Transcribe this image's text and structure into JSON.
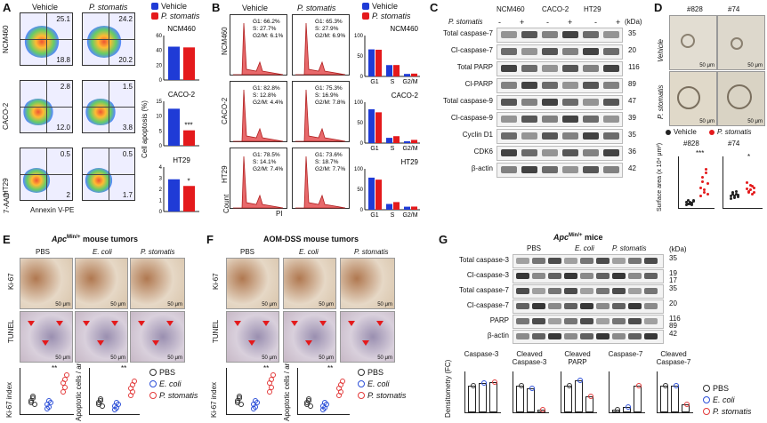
{
  "panels": {
    "A": {
      "label": "A",
      "col_headers": [
        "Vehicle",
        "P. stomatis"
      ],
      "rows": [
        {
          "name": "NCM460",
          "q": [
            "25.1",
            "18.8",
            "24.2",
            "20.2"
          ]
        },
        {
          "name": "CACO-2",
          "q": [
            "2.8",
            "12.0",
            "1.5",
            "3.8"
          ]
        },
        {
          "name": "HT29",
          "q": [
            "0.5",
            "2",
            "0.5",
            "1.7"
          ]
        }
      ],
      "xaxis": "Annexin V-PE",
      "yaxis": "7-AAD",
      "legend": [
        "Vehicle",
        "P. stomatis"
      ],
      "bar_ylabel": "Cell apoptosis (%)",
      "bar_titles": [
        "NCM460",
        "CACO-2",
        "HT29"
      ],
      "bar_yticks": [
        [
          "0",
          "20",
          "40",
          "60"
        ],
        [
          "0",
          "5",
          "10",
          "15"
        ],
        [
          "0",
          "1",
          "2",
          "3",
          "4"
        ]
      ],
      "sig": [
        "",
        "***",
        "*"
      ]
    },
    "B": {
      "label": "B",
      "col_headers": [
        "Vehicle",
        "P. stomatis"
      ],
      "rows": [
        {
          "name": "NCM460",
          "vehicle": [
            "G1: 66.2%",
            "S: 27.7%",
            "G2/M: 6.1%"
          ],
          "stomatis": [
            "G1: 65.3%",
            "S: 27.9%",
            "G2/M: 6.9%"
          ]
        },
        {
          "name": "CACO-2",
          "vehicle": [
            "G1: 82.8%",
            "S: 12.8%",
            "G2/M: 4.4%"
          ],
          "stomatis": [
            "G1: 75.3%",
            "S: 16.9%",
            "G2/M: 7.8%"
          ]
        },
        {
          "name": "HT29",
          "vehicle": [
            "G1: 78.5%",
            "S: 14.1%",
            "G2/M: 7.4%"
          ],
          "stomatis": [
            "G1: 73.6%",
            "S: 18.7%",
            "G2/M: 7.7%"
          ]
        }
      ],
      "xaxis": "PI",
      "yaxis": "Count",
      "legend": [
        "Vehicle",
        "P. stomatis"
      ],
      "bar_titles": [
        "NCM460",
        "CACO-2",
        "HT29"
      ],
      "bar_cats": [
        "G1",
        "S",
        "G2/M"
      ],
      "yticks": [
        "0",
        "50",
        "100"
      ]
    },
    "C": {
      "label": "C",
      "treatment_label": "P. stomatis",
      "groups": [
        "NCM460",
        "CACO-2",
        "HT29"
      ],
      "signs": [
        "-",
        "+",
        "-",
        "+",
        "-",
        "+"
      ],
      "kda_label": "(kDa)",
      "bands": [
        {
          "name": "Total caspase-7",
          "kda": "35"
        },
        {
          "name": "Cl-caspase-7",
          "kda": "20"
        },
        {
          "name": "Total PARP",
          "kda": "116"
        },
        {
          "name": "Cl-PARP",
          "kda": "89"
        },
        {
          "name": "Total caspase-9",
          "kda": "47"
        },
        {
          "name": "Cl-caspase-9",
          "kda": "39"
        },
        {
          "name": "Cyclin D1",
          "kda": "35"
        },
        {
          "name": "CDK6",
          "kda": "36"
        },
        {
          "name": "β-actin",
          "kda": "42"
        }
      ]
    },
    "D": {
      "label": "D",
      "col_headers": [
        "#828",
        "#74"
      ],
      "row_labels": [
        "Vehicle",
        "P. stomatis"
      ],
      "scale": "50 μm",
      "legend": [
        "Vehicle",
        "P. stomatis"
      ],
      "sub_titles": [
        "#828",
        "#74"
      ],
      "ylabel": "Surface area (x 10⁴ μm²)",
      "yticks": [
        "0",
        "1",
        "2",
        "3",
        "4"
      ],
      "sig": [
        "***",
        "*"
      ]
    },
    "E": {
      "label": "E",
      "title": "Apc",
      "title_sup": "Min/+",
      "title_rest": "mouse tumors",
      "col_headers": [
        "PBS",
        "E. coli",
        "P. stomatis"
      ],
      "row_labels": [
        "Ki-67",
        "TUNEL"
      ],
      "scale": "50 μm",
      "plot1_ylabel": "Ki-67 index",
      "plot2_ylabel": "Apoptotic cells / area",
      "sig": [
        "**",
        "**",
        "*",
        "**"
      ],
      "legend": [
        "PBS",
        "E. coli",
        "P. stomatis"
      ]
    },
    "F": {
      "label": "F",
      "title": "AOM-DSS mouse tumors",
      "col_headers": [
        "PBS",
        "E. coli",
        "P. stomatis"
      ],
      "row_labels": [
        "Ki-67",
        "TUNEL"
      ],
      "scale": "50 μm",
      "plot1_ylabel": "Ki-67 index",
      "plot2_ylabel": "Apoptotic cells / area",
      "sig": [
        "**",
        "**",
        "***",
        "**"
      ],
      "legend": [
        "PBS",
        "E. coli",
        "P. stomatis"
      ]
    },
    "G": {
      "label": "G",
      "title": "Apc",
      "title_sup": "Min/+",
      "title_rest": "mice",
      "groups": [
        "PBS",
        "E. coli",
        "P. stomatis"
      ],
      "kda_label": "(kDa)",
      "bands": [
        {
          "name": "Total caspase-3",
          "kda": "35"
        },
        {
          "name": "Cl-caspase-3",
          "kda": "19\n17"
        },
        {
          "name": "Total caspase-7",
          "kda": "35"
        },
        {
          "name": "Cl-caspase-7",
          "kda": "20"
        },
        {
          "name": "PARP",
          "kda": "116\n89"
        },
        {
          "name": "β-actin",
          "kda": "42"
        }
      ],
      "bar_titles": [
        "Caspase-3",
        "Cleaved Caspase-3",
        "Cleaved PARP",
        "Caspase-7",
        "Cleaved Caspase-7"
      ],
      "ylabel": "Densitometry (FC)",
      "legend": [
        "PBS",
        "E. coli",
        "P. stomatis"
      ]
    }
  },
  "colors": {
    "vehicle": "#1f3bd6",
    "stomatis": "#e41a1c",
    "pbs": "#333333",
    "ecoli": "#2c4fd8",
    "pstom": "#e33b3b"
  },
  "chart_data": [
    {
      "type": "bar",
      "title": "NCM460",
      "ylabel": "Cell apoptosis (%)",
      "categories": [
        "Vehicle",
        "P. stomatis"
      ],
      "values": [
        45,
        44
      ],
      "ylim": [
        0,
        60
      ]
    },
    {
      "type": "bar",
      "title": "CACO-2",
      "ylabel": "Cell apoptosis (%)",
      "categories": [
        "Vehicle",
        "P. stomatis"
      ],
      "values": [
        12.5,
        5.2
      ],
      "ylim": [
        0,
        15
      ]
    },
    {
      "type": "bar",
      "title": "HT29",
      "ylabel": "Cell apoptosis (%)",
      "categories": [
        "Vehicle",
        "P. stomatis"
      ],
      "values": [
        2.9,
        2.3
      ],
      "ylim": [
        0,
        4
      ]
    },
    {
      "type": "bar",
      "title": "NCM460",
      "categories": [
        "G1",
        "S",
        "G2/M"
      ],
      "series": [
        {
          "name": "Vehicle",
          "values": [
            66.2,
            27.7,
            6.1
          ]
        },
        {
          "name": "P. stomatis",
          "values": [
            65.3,
            27.9,
            6.9
          ]
        }
      ],
      "ylim": [
        0,
        100
      ]
    },
    {
      "type": "bar",
      "title": "CACO-2",
      "categories": [
        "G1",
        "S",
        "G2/M"
      ],
      "series": [
        {
          "name": "Vehicle",
          "values": [
            82.8,
            12.8,
            4.4
          ]
        },
        {
          "name": "P. stomatis",
          "values": [
            75.3,
            16.9,
            7.8
          ]
        }
      ],
      "ylim": [
        0,
        100
      ]
    },
    {
      "type": "bar",
      "title": "HT29",
      "categories": [
        "G1",
        "S",
        "G2/M"
      ],
      "series": [
        {
          "name": "Vehicle",
          "values": [
            78.5,
            14.1,
            7.4
          ]
        },
        {
          "name": "P. stomatis",
          "values": [
            73.6,
            18.7,
            7.7
          ]
        }
      ],
      "ylim": [
        0,
        100
      ]
    }
  ]
}
